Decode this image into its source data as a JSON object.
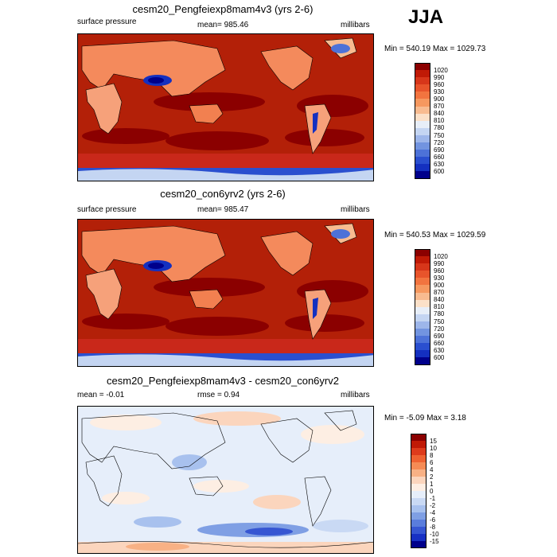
{
  "season": "JJA",
  "panels": [
    {
      "title": "cesm20_Pengfeiexp8mam4v3 (yrs 2-6)",
      "left_label": "surface pressure",
      "center_label": "mean= 985.46",
      "right_label": "millibars",
      "minmax": "Min = 540.19 Max = 1029.73",
      "colorbar_levels": [
        "1020",
        "990",
        "960",
        "930",
        "900",
        "870",
        "840",
        "810",
        "780",
        "750",
        "720",
        "690",
        "660",
        "630",
        "600"
      ]
    },
    {
      "title": "cesm20_con6yrv2 (yrs 2-6)",
      "left_label": "surface pressure",
      "center_label": "mean= 985.47",
      "right_label": "millibars",
      "minmax": "Min = 540.53 Max = 1029.59",
      "colorbar_levels": [
        "1020",
        "990",
        "960",
        "930",
        "900",
        "870",
        "840",
        "810",
        "780",
        "750",
        "720",
        "690",
        "660",
        "630",
        "600"
      ]
    },
    {
      "title": "cesm20_Pengfeiexp8mam4v3 - cesm20_con6yrv2",
      "left_label": "mean =  -0.01",
      "center_label": "rmse =   0.94",
      "right_label": "millibars",
      "minmax": "Min =  -5.09 Max =   3.18",
      "colorbar_levels": [
        "15",
        "10",
        "8",
        "6",
        "4",
        "2",
        "1",
        "0",
        "-1",
        "-2",
        "-4",
        "-6",
        "-8",
        "-10",
        "-15"
      ]
    }
  ],
  "colors": {
    "abs_scale": [
      "#8b0000",
      "#c01a06",
      "#d7361a",
      "#e8542b",
      "#f2743f",
      "#f6985f",
      "#f8bb90",
      "#fbe0c8",
      "#e7eef8",
      "#c4d5f2",
      "#9db6ea",
      "#7294e0",
      "#4d72d8",
      "#2a4fcf",
      "#1430c0",
      "#00008b"
    ],
    "diff_scale": [
      "#8b0000",
      "#c01a06",
      "#dd3b1c",
      "#ee6232",
      "#f58b55",
      "#f8b185",
      "#fbd5bd",
      "#fdeee3",
      "#e6eefa",
      "#c9d9f4",
      "#a8c1ee",
      "#7f9fe4",
      "#5a7ddc",
      "#3656d2",
      "#1730c4",
      "#00008b"
    ],
    "land_high": "#f6a17a",
    "ocean_high": "#b32008",
    "ocean_low": "#8b0000"
  }
}
